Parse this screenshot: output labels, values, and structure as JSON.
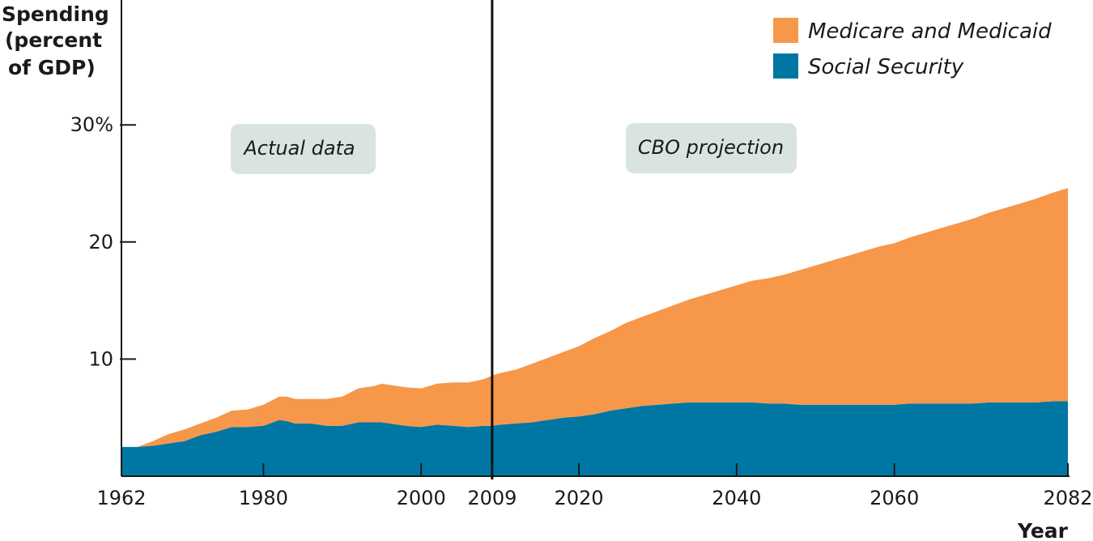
{
  "chart_data": {
    "type": "area",
    "stacked": true,
    "ylabel": [
      "Spending",
      "(percent",
      "of GDP)"
    ],
    "xlabel": "Year",
    "xlim": [
      1962,
      2082
    ],
    "ylim": [
      0,
      40
    ],
    "yticks": [
      10,
      20,
      30
    ],
    "ytick_labels": [
      "10",
      "20",
      "30%"
    ],
    "xticks": [
      1962,
      1980,
      2000,
      2009,
      2020,
      2040,
      2060,
      2082
    ],
    "xtick_labels": [
      "1962",
      "1980",
      "2000",
      "2009",
      "2020",
      "2040",
      "2060",
      "2082"
    ],
    "divider_year": 2009,
    "legend_position": "top-right",
    "annotations": [
      {
        "text": "Actual data",
        "region": "actual"
      },
      {
        "text": "CBO projection",
        "region": "projection"
      }
    ],
    "x": [
      1962,
      1964,
      1966,
      1968,
      1970,
      1972,
      1974,
      1976,
      1978,
      1980,
      1982,
      1983,
      1984,
      1986,
      1988,
      1990,
      1992,
      1994,
      1995,
      1996,
      1998,
      2000,
      2002,
      2004,
      2006,
      2008,
      2009,
      2010,
      2012,
      2014,
      2016,
      2018,
      2020,
      2022,
      2024,
      2026,
      2028,
      2030,
      2032,
      2034,
      2036,
      2038,
      2040,
      2042,
      2044,
      2046,
      2048,
      2050,
      2052,
      2054,
      2056,
      2058,
      2060,
      2062,
      2064,
      2066,
      2068,
      2070,
      2072,
      2074,
      2076,
      2078,
      2080,
      2082
    ],
    "series": [
      {
        "name": "Social Security",
        "color": "#0077a3",
        "values": [
          2.5,
          2.5,
          2.6,
          2.8,
          3.0,
          3.5,
          3.8,
          4.2,
          4.2,
          4.3,
          4.8,
          4.7,
          4.5,
          4.5,
          4.3,
          4.3,
          4.6,
          4.6,
          4.6,
          4.5,
          4.3,
          4.2,
          4.4,
          4.3,
          4.2,
          4.3,
          4.3,
          4.4,
          4.5,
          4.6,
          4.8,
          5.0,
          5.1,
          5.3,
          5.6,
          5.8,
          6.0,
          6.1,
          6.2,
          6.3,
          6.3,
          6.3,
          6.3,
          6.3,
          6.2,
          6.2,
          6.1,
          6.1,
          6.1,
          6.1,
          6.1,
          6.1,
          6.1,
          6.2,
          6.2,
          6.2,
          6.2,
          6.2,
          6.3,
          6.3,
          6.3,
          6.3,
          6.4,
          6.4
        ]
      },
      {
        "name": "Medicare and Medicaid",
        "color": "#f7974a",
        "values": [
          0.0,
          0.0,
          0.4,
          0.8,
          1.0,
          1.0,
          1.2,
          1.4,
          1.5,
          1.8,
          2.0,
          2.1,
          2.1,
          2.1,
          2.3,
          2.5,
          2.9,
          3.1,
          3.3,
          3.3,
          3.3,
          3.3,
          3.5,
          3.7,
          3.8,
          4.0,
          4.3,
          4.4,
          4.6,
          5.0,
          5.3,
          5.6,
          6.0,
          6.5,
          6.8,
          7.3,
          7.6,
          8.0,
          8.4,
          8.8,
          9.2,
          9.6,
          10.0,
          10.4,
          10.7,
          11.0,
          11.5,
          11.9,
          12.3,
          12.7,
          13.1,
          13.5,
          13.8,
          14.2,
          14.6,
          15.0,
          15.4,
          15.8,
          16.2,
          16.6,
          17.0,
          17.4,
          17.8,
          18.2
        ]
      }
    ]
  }
}
